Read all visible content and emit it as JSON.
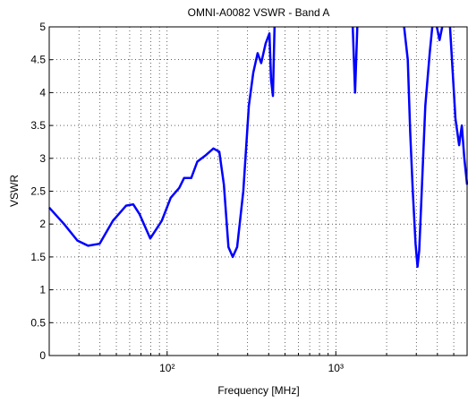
{
  "chart_data": {
    "type": "line",
    "title": "OMNI-A0082 VSWR - Band A",
    "xlabel": "Frequency [MHz]",
    "ylabel": "VSWR",
    "xscale": "log",
    "xlim": [
      20,
      6000
    ],
    "ylim": [
      0,
      5
    ],
    "xticks": [
      {
        "value": 100,
        "label": "10²"
      },
      {
        "value": 1000,
        "label": "10³"
      }
    ],
    "xminorticks": [
      30,
      40,
      50,
      60,
      70,
      80,
      90,
      200,
      300,
      400,
      500,
      600,
      700,
      800,
      900,
      2000,
      3000,
      4000,
      5000
    ],
    "yticks": [
      0,
      0.5,
      1,
      1.5,
      2,
      2.5,
      3,
      3.5,
      4,
      4.5,
      5
    ],
    "grid": true,
    "x": [
      20,
      24.5,
      29.4,
      34,
      39.8,
      47.7,
      57.2,
      63,
      68.7,
      79.4,
      93,
      105,
      118,
      126,
      139,
      151,
      170,
      188,
      204,
      217,
      231,
      245,
      260,
      283,
      305,
      324,
      344,
      361,
      384,
      404,
      413,
      424,
      433,
      800,
      1260,
      1300,
      1340,
      2000,
      2540,
      2670,
      2760,
      2860,
      2970,
      3050,
      3120,
      3230,
      3390,
      3600,
      3730,
      3850,
      3970,
      4120,
      4270,
      4500,
      4750,
      5120,
      5380,
      5580,
      5780,
      6000
    ],
    "series": [
      {
        "name": "VSWR",
        "color": "#0000ff",
        "values": [
          2.25,
          2.0,
          1.75,
          1.67,
          1.7,
          2.05,
          2.28,
          2.3,
          2.15,
          1.78,
          2.05,
          2.4,
          2.55,
          2.7,
          2.7,
          2.95,
          3.05,
          3.15,
          3.1,
          2.6,
          1.65,
          1.5,
          1.65,
          2.5,
          3.8,
          4.3,
          4.6,
          4.45,
          4.75,
          4.9,
          4.2,
          3.95,
          5,
          null,
          5,
          4.0,
          5,
          null,
          5,
          4.5,
          3.4,
          2.5,
          1.7,
          1.35,
          1.6,
          2.5,
          3.8,
          4.6,
          5,
          null,
          5,
          4.8,
          5,
          null,
          5,
          3.6,
          3.2,
          3.5,
          3.0,
          2.6
        ]
      }
    ]
  }
}
